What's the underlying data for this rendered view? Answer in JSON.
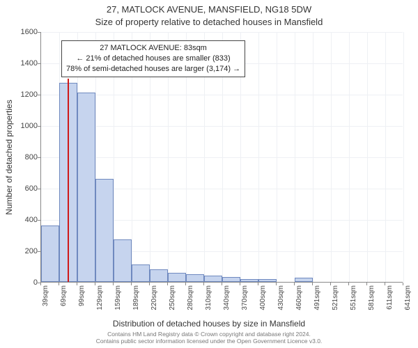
{
  "title_line1": "27, MATLOCK AVENUE, MANSFIELD, NG18 5DW",
  "title_line2": "Size of property relative to detached houses in Mansfield",
  "y_axis_label": "Number of detached properties",
  "x_axis_label": "Distribution of detached houses by size in Mansfield",
  "chart": {
    "type": "histogram",
    "ylim": [
      0,
      1600
    ],
    "ytick_step": 200,
    "yticks": [
      0,
      200,
      400,
      600,
      800,
      1000,
      1200,
      1400,
      1600
    ],
    "xticks": [
      "39sqm",
      "69sqm",
      "99sqm",
      "129sqm",
      "159sqm",
      "189sqm",
      "220sqm",
      "250sqm",
      "280sqm",
      "310sqm",
      "340sqm",
      "370sqm",
      "400sqm",
      "430sqm",
      "460sqm",
      "491sqm",
      "521sqm",
      "551sqm",
      "581sqm",
      "611sqm",
      "641sqm"
    ],
    "values": [
      360,
      1270,
      1210,
      660,
      270,
      110,
      80,
      60,
      50,
      40,
      30,
      20,
      20,
      0,
      25,
      0,
      0,
      0,
      0,
      0
    ],
    "bar_fill": "#c6d4ee",
    "bar_stroke": "#6f89bf",
    "bar_width_ratio": 1.0,
    "background_color": "#ffffff",
    "grid_color": "#eef0f4",
    "axis_color": "#888888",
    "marker": {
      "position_category_index": 1.47,
      "color": "#d01818",
      "height_value": 1300
    }
  },
  "annotation": {
    "line1": "27 MATLOCK AVENUE: 83sqm",
    "line2": "← 21% of detached houses are smaller (833)",
    "line3": "78% of semi-detached houses are larger (3,174) →",
    "border_color": "#444444",
    "background": "#ffffff",
    "fontsize": 11
  },
  "footer": {
    "line1": "Contains HM Land Registry data © Crown copyright and database right 2024.",
    "line2": "Contains public sector information licensed under the Open Government Licence v3.0."
  }
}
